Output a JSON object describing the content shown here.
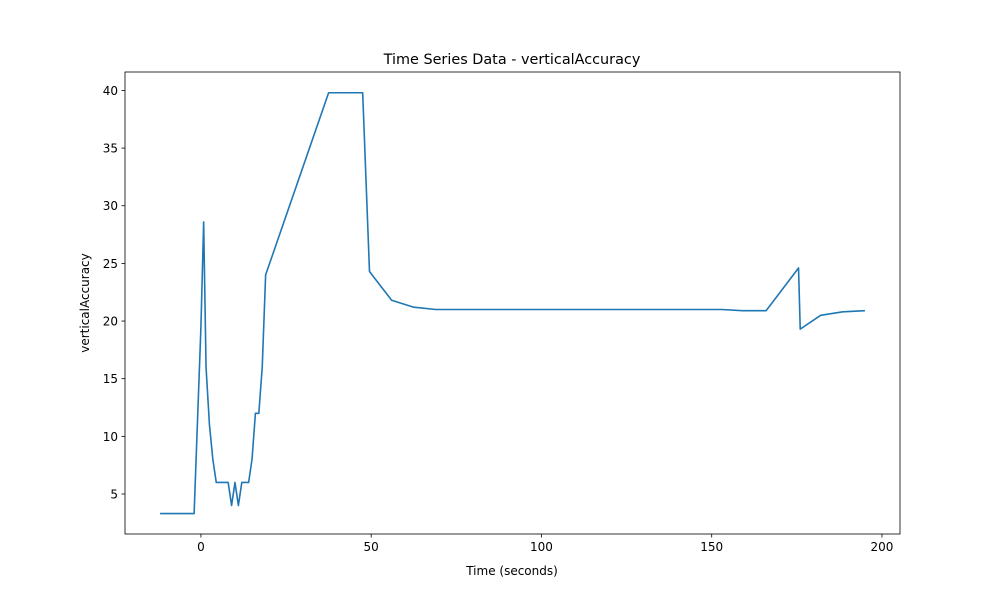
{
  "chart_data": {
    "type": "line",
    "title": "Time Series Data - verticalAccuracy",
    "xlabel": "Time (seconds)",
    "ylabel": "verticalAccuracy",
    "xlim": [
      -22.3,
      205.3
    ],
    "ylim": [
      1.53,
      41.6
    ],
    "xticks": [
      0,
      50,
      100,
      150,
      200
    ],
    "yticks": [
      5,
      10,
      15,
      20,
      25,
      30,
      35,
      40
    ],
    "grid": false,
    "legend": "none",
    "series": [
      {
        "color": "#1f77b4",
        "x": [
          -12,
          -2,
          0,
          0.8,
          1.5,
          2.5,
          3.5,
          4.5,
          6,
          8,
          9,
          10,
          11,
          12,
          14,
          15,
          16,
          17,
          18,
          19,
          37.5,
          47.5,
          49.5,
          56,
          62.5,
          69,
          80,
          100,
          120,
          140,
          153,
          159,
          166,
          175.5,
          176,
          182,
          188.5,
          195
        ],
        "y": [
          3.3,
          3.3,
          19.5,
          28.6,
          16,
          11,
          8,
          6,
          6,
          6,
          4,
          6,
          4,
          6,
          6,
          8,
          12,
          12,
          16,
          24,
          39.8,
          39.8,
          24.3,
          21.8,
          21.2,
          21,
          21,
          21,
          21,
          21,
          21,
          20.9,
          20.9,
          24.6,
          19.3,
          20.5,
          20.8,
          20.9
        ]
      }
    ]
  }
}
